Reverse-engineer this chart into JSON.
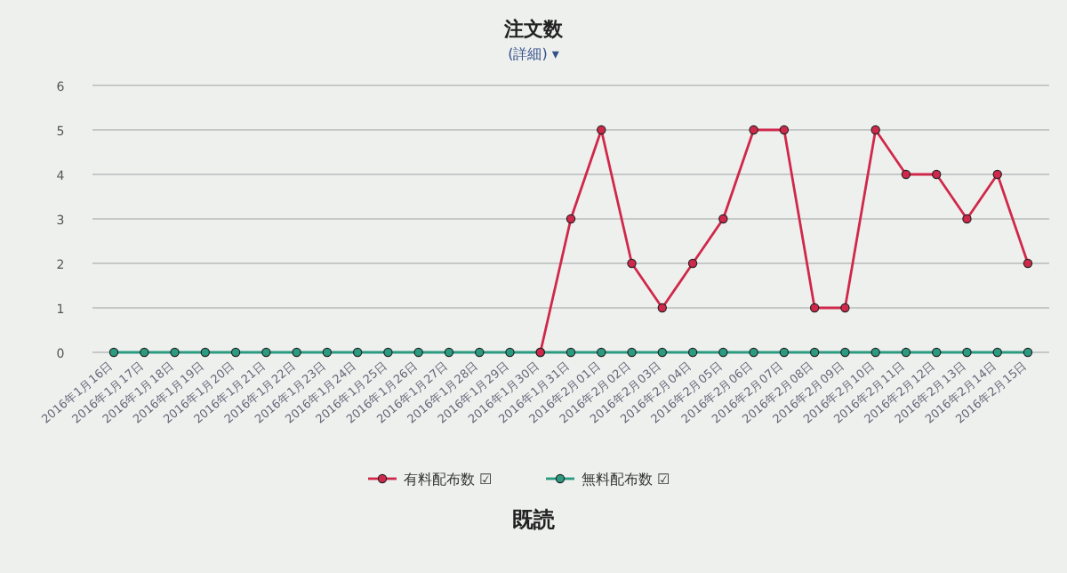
{
  "chart_data": {
    "type": "line",
    "title": "注文数",
    "subtitle": "(詳細) ▾",
    "categories": [
      "2016年1月16日",
      "2016年1月17日",
      "2016年1月18日",
      "2016年1月19日",
      "2016年1月20日",
      "2016年1月21日",
      "2016年1月22日",
      "2016年1月23日",
      "2016年1月24日",
      "2016年1月25日",
      "2016年1月26日",
      "2016年1月27日",
      "2016年1月28日",
      "2016年1月29日",
      "2016年1月30日",
      "2016年1月31日",
      "2016年2月01日",
      "2016年2月02日",
      "2016年2月03日",
      "2016年2月04日",
      "2016年2月05日",
      "2016年2月06日",
      "2016年2月07日",
      "2016年2月08日",
      "2016年2月09日",
      "2016年2月10日",
      "2016年2月11日",
      "2016年2月12日",
      "2016年2月13日",
      "2016年2月14日",
      "2016年2月15日"
    ],
    "series": [
      {
        "name": "無料配布数 ☑",
        "color": "#2a9a80",
        "values": [
          0,
          0,
          0,
          0,
          0,
          0,
          0,
          0,
          0,
          0,
          0,
          0,
          0,
          0,
          0,
          0,
          0,
          0,
          0,
          0,
          0,
          0,
          0,
          0,
          0,
          0,
          0,
          0,
          0,
          0,
          0
        ]
      },
      {
        "name": "有料配布数 ☑",
        "color": "#d0284a",
        "values": [
          null,
          null,
          null,
          null,
          null,
          null,
          null,
          null,
          null,
          null,
          null,
          null,
          null,
          null,
          0,
          3,
          5,
          2,
          1,
          2,
          3,
          5,
          5,
          1,
          1,
          5,
          4,
          4,
          3,
          4,
          2
        ]
      }
    ],
    "ylim": [
      0,
      6
    ],
    "yticks": [
      0,
      1,
      2,
      3,
      4,
      5,
      6
    ],
    "grid": "y",
    "legend": "bottom",
    "marker": "circle",
    "line_style": "solid",
    "annotations": [
      "既読"
    ]
  }
}
